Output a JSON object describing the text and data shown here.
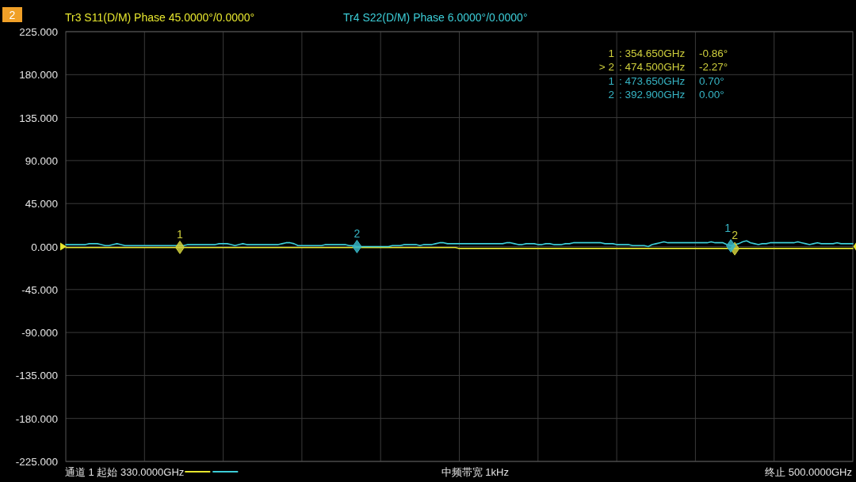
{
  "chart_data": {
    "type": "line",
    "title": "2",
    "categories": [
      null,
      null,
      null,
      null,
      null,
      null,
      null,
      null,
      null,
      null,
      null,
      null,
      null,
      null,
      null,
      null,
      null,
      null,
      null,
      null,
      null,
      null,
      null,
      null,
      null,
      null,
      null,
      null,
      null,
      null,
      null,
      null,
      null,
      null,
      null,
      null,
      null,
      null,
      null,
      null,
      null,
      null,
      null,
      null,
      null,
      null,
      null,
      null,
      null,
      null,
      null,
      null,
      null,
      null,
      null,
      null,
      null,
      null,
      null,
      null,
      null,
      null,
      null,
      null,
      null,
      null,
      null,
      null,
      null,
      null,
      null,
      null,
      null,
      null,
      null,
      null,
      null,
      null,
      null,
      null,
      null,
      null,
      null,
      null,
      null,
      null,
      null,
      null,
      null,
      null,
      null,
      null,
      null,
      null,
      null,
      null,
      null,
      null,
      null,
      null,
      null,
      null,
      null,
      null,
      null,
      null,
      null,
      null,
      null,
      null,
      null,
      null,
      null,
      null,
      null,
      null,
      null,
      null,
      null,
      null,
      null,
      null,
      null,
      null,
      null,
      null,
      null,
      null,
      null,
      null,
      null,
      null,
      null,
      null,
      null,
      null,
      null,
      null,
      null,
      null,
      null,
      null,
      null,
      null,
      null,
      null,
      null,
      null,
      null,
      null,
      null,
      null,
      null,
      null,
      null,
      null,
      null,
      null,
      null,
      null,
      null,
      null,
      null,
      null,
      null,
      null,
      null,
      null,
      null,
      null,
      null,
      null,
      null,
      null,
      null,
      null,
      null,
      null,
      null,
      null,
      null,
      null,
      null,
      null,
      null,
      null,
      null,
      null,
      null,
      null,
      null,
      null,
      null,
      null,
      null,
      null,
      null,
      null,
      null,
      null,
      null
    ],
    "ylim": [
      -225,
      225
    ],
    "yticks": [
      {
        "value": 225,
        "label": "225.000"
      },
      {
        "value": 180,
        "label": "180.000"
      },
      {
        "value": 135,
        "label": "135.000"
      },
      {
        "value": 90,
        "label": "90.000"
      },
      {
        "value": 45,
        "label": "45.000"
      },
      {
        "value": 0,
        "label": "0.000"
      },
      {
        "value": -45,
        "label": "-45.000"
      },
      {
        "value": -90,
        "label": "-90.000"
      },
      {
        "value": -135,
        "label": "-135.000"
      },
      {
        "value": -180,
        "label": "-180.000"
      },
      {
        "value": -225,
        "label": "-225.000"
      }
    ],
    "tick_labels": "y",
    "grid": true,
    "series": [
      {
        "name": "Tr3 S11(D/M) Phase 45.0000°/0.0000°",
        "color": "#e6e62e",
        "values": [
          -1,
          -1,
          -1,
          -1,
          -1,
          -1,
          -1,
          -1,
          -1,
          -1,
          -1,
          -1,
          -1,
          -1,
          -1,
          -1,
          -1,
          -1,
          -1,
          -1,
          -1,
          -1,
          -1,
          -1,
          -1,
          -1,
          -1,
          -1,
          -1,
          -1,
          -1,
          -1,
          -1,
          -1,
          -1,
          -1,
          -1,
          -1,
          -1,
          -1,
          -1,
          -1,
          -1,
          -1,
          -1,
          -1,
          -1,
          -1,
          -1,
          -1,
          -1,
          -1,
          -1,
          -1,
          -1,
          -1,
          -1,
          -1,
          -1,
          -1,
          -1,
          -1,
          -1,
          -1,
          -1,
          -1,
          -1,
          -1,
          -1,
          -1,
          -1,
          -1,
          -1,
          -1,
          -1,
          -1,
          -1,
          -1,
          -1,
          -1,
          -1,
          -1,
          -1,
          -1,
          -1,
          -1,
          -1,
          -1,
          -1,
          -1,
          -1,
          -1,
          -1,
          -1,
          -1,
          -1,
          -1,
          -1,
          -1,
          -1,
          -2,
          -2,
          -2,
          -2,
          -2,
          -2,
          -2,
          -2,
          -2,
          -2,
          -2,
          -2,
          -2,
          -2,
          -2,
          -2,
          -2,
          -2,
          -2,
          -2,
          -2,
          -2,
          -2,
          -2,
          -2,
          -2,
          -2,
          -2,
          -2,
          -2,
          -2,
          -2,
          -2,
          -2,
          -2,
          -2,
          -2,
          -2,
          -2,
          -2,
          -2,
          -2,
          -2,
          -2,
          -2,
          -2,
          -2,
          -2,
          -2,
          -2,
          -2,
          -2,
          -2,
          -2,
          -2,
          -2,
          -2,
          -2,
          -2,
          -2,
          -2,
          -2,
          -2,
          -2,
          -2,
          -2,
          -2,
          -2,
          -2,
          -2,
          -2,
          -2,
          -2,
          -2,
          -2,
          -2,
          -2,
          -2,
          -2,
          -2,
          -2,
          -2,
          -2,
          -2,
          -2,
          -2,
          -2,
          -2,
          -2,
          -2,
          -2,
          -2,
          -2,
          -2,
          -2,
          -2,
          -2,
          -2,
          -2,
          -2,
          -2
        ]
      },
      {
        "name": "Tr4 S22(D/M) Phase 6.0000°/0.0000°",
        "color": "#3ccdd7",
        "values": [
          2,
          2,
          2,
          2,
          2,
          2,
          3,
          3,
          3,
          2,
          1,
          1,
          2,
          3,
          2,
          1,
          1,
          1,
          1,
          1,
          1,
          1,
          1,
          1,
          1,
          1,
          1,
          1,
          1,
          1,
          1,
          2,
          2,
          2,
          2,
          2,
          2,
          2,
          2,
          3,
          3,
          3,
          2,
          1,
          2,
          3,
          2,
          2,
          2,
          2,
          2,
          2,
          2,
          2,
          2,
          3,
          4,
          4,
          3,
          1,
          1,
          1,
          1,
          1,
          1,
          1,
          2,
          2,
          2,
          2,
          2,
          2,
          1,
          1,
          0,
          0,
          0,
          0,
          0,
          0,
          0,
          0,
          0,
          1,
          1,
          1,
          2,
          2,
          2,
          2,
          1,
          2,
          2,
          2,
          3,
          4,
          4,
          3,
          3,
          3,
          3,
          3,
          3,
          3,
          3,
          3,
          3,
          3,
          3,
          3,
          3,
          3,
          4,
          4,
          3,
          2,
          2,
          3,
          3,
          3,
          2,
          2,
          3,
          3,
          2,
          2,
          2,
          3,
          3,
          4,
          4,
          4,
          4,
          4,
          4,
          4,
          4,
          3,
          3,
          3,
          2,
          2,
          2,
          2,
          1,
          1,
          1,
          1,
          0,
          2,
          3,
          4,
          5,
          4,
          4,
          4,
          4,
          4,
          4,
          4,
          4,
          4,
          4,
          4,
          5,
          4,
          4,
          4,
          2,
          1,
          2,
          3,
          5,
          6,
          4,
          3,
          2,
          3,
          3,
          4,
          4,
          4,
          4,
          4,
          4,
          4,
          5,
          4,
          3,
          2,
          3,
          4,
          3,
          3,
          3,
          3,
          4,
          3,
          3,
          3,
          3
        ]
      },
      {
        "name": "1",
        "type": "scatter",
        "marker": "diamond",
        "color": "#cfcf3c",
        "values": [
          null,
          null,
          null,
          null,
          null,
          null,
          null,
          null,
          null,
          null,
          null,
          null,
          null,
          null,
          null,
          null,
          null,
          null,
          null,
          null,
          null,
          null,
          null,
          null,
          null,
          null,
          null,
          null,
          null,
          -0.86,
          null,
          null,
          null,
          null,
          null,
          null,
          null,
          null,
          null,
          null,
          null,
          null,
          null,
          null,
          null,
          null,
          null,
          null,
          null,
          null,
          null,
          null,
          null,
          null,
          null,
          null,
          null,
          null,
          null,
          null,
          null,
          null,
          null,
          null,
          null,
          null,
          null,
          null,
          null,
          null,
          null,
          null,
          null,
          null,
          null,
          null,
          null,
          null,
          null,
          null,
          null,
          null,
          null,
          null,
          null,
          null,
          null,
          null,
          null,
          null,
          null,
          null,
          null,
          null,
          null,
          null,
          null,
          null,
          null,
          null,
          null,
          null,
          null,
          null,
          null,
          null,
          null,
          null,
          null,
          null,
          null,
          null,
          null,
          null,
          null,
          null,
          null,
          null,
          null,
          null,
          null,
          null,
          null,
          null,
          null,
          null,
          null,
          null,
          null,
          null,
          null,
          null,
          null,
          null,
          null,
          null,
          null,
          null,
          null,
          null,
          null,
          null,
          null,
          null,
          null,
          null,
          null,
          null,
          null,
          null,
          null,
          null,
          null,
          null,
          null,
          null,
          null,
          null,
          null,
          null,
          null,
          null,
          null,
          null,
          null,
          null,
          null,
          null,
          null,
          null,
          null,
          null,
          null,
          null,
          null,
          null,
          null,
          null,
          null,
          null,
          null,
          null,
          null,
          null,
          null,
          null,
          null,
          null,
          null,
          null,
          null,
          null,
          null,
          null,
          null,
          null,
          null,
          null,
          null,
          null,
          null
        ]
      },
      {
        "name": "2",
        "type": "scatter",
        "marker": "diamond",
        "color": "#cfcf3c",
        "values": [
          null,
          null,
          null,
          null,
          null,
          null,
          null,
          null,
          null,
          null,
          null,
          null,
          null,
          null,
          null,
          null,
          null,
          null,
          null,
          null,
          null,
          null,
          null,
          null,
          null,
          null,
          null,
          null,
          null,
          null,
          null,
          null,
          null,
          null,
          null,
          null,
          null,
          null,
          null,
          null,
          null,
          null,
          null,
          null,
          null,
          null,
          null,
          null,
          null,
          null,
          null,
          null,
          null,
          null,
          null,
          null,
          null,
          null,
          null,
          null,
          null,
          null,
          null,
          null,
          null,
          null,
          null,
          null,
          null,
          null,
          null,
          null,
          null,
          null,
          null,
          null,
          null,
          null,
          null,
          null,
          null,
          null,
          null,
          null,
          null,
          null,
          null,
          null,
          null,
          null,
          null,
          null,
          null,
          null,
          null,
          null,
          null,
          null,
          null,
          null,
          null,
          null,
          null,
          null,
          null,
          null,
          null,
          null,
          null,
          null,
          null,
          null,
          null,
          null,
          null,
          null,
          null,
          null,
          null,
          null,
          null,
          null,
          null,
          null,
          null,
          null,
          null,
          null,
          null,
          null,
          null,
          null,
          null,
          null,
          null,
          null,
          null,
          null,
          null,
          null,
          null,
          null,
          null,
          null,
          null,
          null,
          null,
          null,
          null,
          null,
          null,
          null,
          null,
          null,
          null,
          null,
          null,
          null,
          null,
          null,
          null,
          null,
          null,
          null,
          null,
          null,
          null,
          null,
          null,
          null,
          -2.27,
          null,
          null,
          null,
          null,
          null,
          null,
          null,
          null,
          null,
          null,
          null,
          null,
          null,
          null,
          null,
          null,
          null,
          null,
          null,
          null,
          null,
          null,
          null,
          null,
          null,
          null,
          null,
          null,
          null,
          null
        ]
      },
      {
        "name": "1",
        "type": "scatter",
        "marker": "diamond",
        "color": "#36b4c4",
        "values": [
          null,
          null,
          null,
          null,
          null,
          null,
          null,
          null,
          null,
          null,
          null,
          null,
          null,
          null,
          null,
          null,
          null,
          null,
          null,
          null,
          null,
          null,
          null,
          null,
          null,
          null,
          null,
          null,
          null,
          null,
          null,
          null,
          null,
          null,
          null,
          null,
          null,
          null,
          null,
          null,
          null,
          null,
          null,
          null,
          null,
          null,
          null,
          null,
          null,
          null,
          null,
          null,
          null,
          null,
          null,
          null,
          null,
          null,
          null,
          null,
          null,
          null,
          null,
          null,
          null,
          null,
          null,
          null,
          null,
          null,
          null,
          null,
          null,
          null,
          null,
          null,
          null,
          null,
          null,
          null,
          null,
          null,
          null,
          null,
          null,
          null,
          null,
          null,
          null,
          null,
          null,
          null,
          null,
          null,
          null,
          null,
          null,
          null,
          null,
          null,
          null,
          null,
          null,
          null,
          null,
          null,
          null,
          null,
          null,
          null,
          null,
          null,
          null,
          null,
          null,
          null,
          null,
          null,
          null,
          null,
          null,
          null,
          null,
          null,
          null,
          null,
          null,
          null,
          null,
          null,
          null,
          null,
          null,
          null,
          null,
          null,
          null,
          null,
          null,
          null,
          null,
          null,
          null,
          null,
          null,
          null,
          null,
          null,
          null,
          null,
          null,
          null,
          null,
          null,
          null,
          null,
          null,
          null,
          null,
          null,
          null,
          null,
          null,
          null,
          null,
          null,
          null,
          null,
          null,
          0.7,
          null,
          null,
          null,
          null,
          null,
          null,
          null,
          null,
          null,
          null,
          null,
          null,
          null,
          null,
          null,
          null,
          null,
          null,
          null,
          null,
          null,
          null,
          null,
          null,
          null,
          null,
          null,
          null,
          null,
          null,
          null
        ]
      },
      {
        "name": "2",
        "type": "scatter",
        "marker": "diamond",
        "color": "#36b4c4",
        "values": [
          null,
          null,
          null,
          null,
          null,
          null,
          null,
          null,
          null,
          null,
          null,
          null,
          null,
          null,
          null,
          null,
          null,
          null,
          null,
          null,
          null,
          null,
          null,
          null,
          null,
          null,
          null,
          null,
          null,
          null,
          null,
          null,
          null,
          null,
          null,
          null,
          null,
          null,
          null,
          null,
          null,
          null,
          null,
          null,
          null,
          null,
          null,
          null,
          null,
          null,
          null,
          null,
          null,
          null,
          null,
          null,
          null,
          null,
          null,
          null,
          null,
          null,
          null,
          null,
          null,
          null,
          null,
          null,
          null,
          null,
          null,
          null,
          null,
          null,
          0.0,
          null,
          null,
          null,
          null,
          null,
          null,
          null,
          null,
          null,
          null,
          null,
          null,
          null,
          null,
          null,
          null,
          null,
          null,
          null,
          null,
          null,
          null,
          null,
          null,
          null,
          null,
          null,
          null,
          null,
          null,
          null,
          null,
          null,
          null,
          null,
          null,
          null,
          null,
          null,
          null,
          null,
          null,
          null,
          null,
          null,
          null,
          null,
          null,
          null,
          null,
          null,
          null,
          null,
          null,
          null,
          null,
          null,
          null,
          null,
          null,
          null,
          null,
          null,
          null,
          null,
          null,
          null,
          null,
          null,
          null,
          null,
          null,
          null,
          null,
          null,
          null,
          null,
          null,
          null,
          null,
          null,
          null,
          null,
          null,
          null,
          null,
          null,
          null,
          null,
          null,
          null,
          null,
          null,
          null,
          null,
          null,
          null,
          null,
          null,
          null,
          null,
          null,
          null,
          null,
          null,
          null,
          null,
          null,
          null,
          null,
          null,
          null,
          null,
          null,
          null,
          null,
          null,
          null,
          null,
          null,
          null,
          null,
          null,
          null,
          null,
          null
        ]
      }
    ],
    "annotations": [
      "1 : 354.650GHz -0.86°",
      "> 2 : 474.500GHz -2.27°",
      "1 : 473.650GHz 0.70°",
      "2 : 392.900GHz 0.00°",
      "通道 1 起始 330.0000GHz",
      "中频带宽 1kHz",
      "终止 500.0000GHz"
    ]
  }
}
